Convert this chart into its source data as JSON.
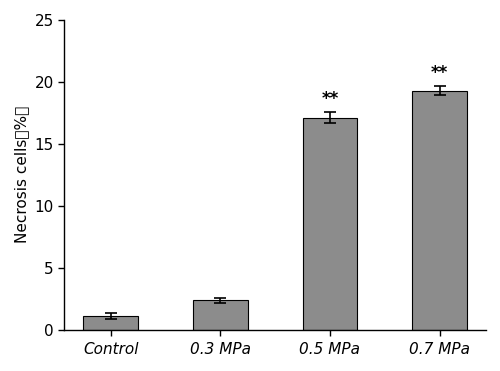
{
  "categories": [
    "Control",
    "0.3 MPa",
    "0.5 MPa",
    "0.7 MPa"
  ],
  "values": [
    1.1,
    2.35,
    17.1,
    19.3
  ],
  "errors": [
    0.25,
    0.2,
    0.45,
    0.35
  ],
  "bar_color": "#8c8c8c",
  "bar_edgecolor": "#000000",
  "ylabel": "Necrosis cells（%）",
  "ylim": [
    0,
    25
  ],
  "yticks": [
    0,
    5,
    10,
    15,
    20,
    25
  ],
  "significance": [
    "",
    "",
    "**",
    "**"
  ],
  "background_color": "#ffffff",
  "bar_width": 0.5,
  "xlabel_fontsize": 11,
  "ylabel_fontsize": 11,
  "tick_fontsize": 11,
  "sig_fontsize": 12
}
